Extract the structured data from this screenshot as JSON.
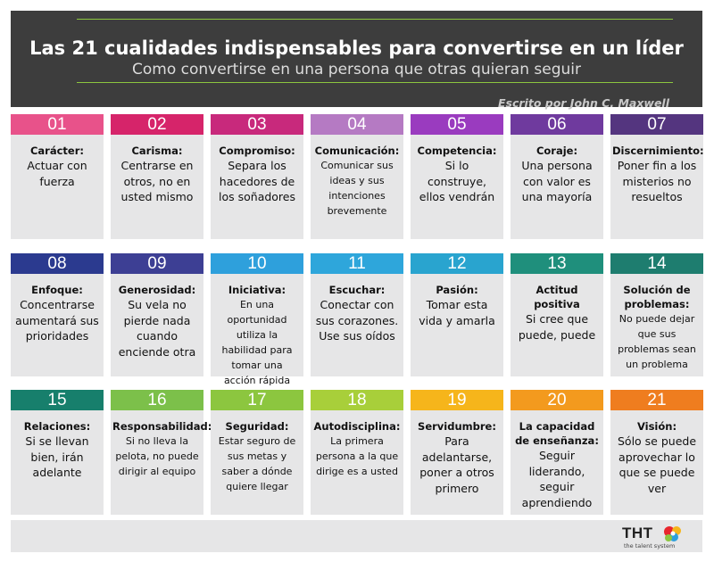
{
  "header": {
    "title": "Las 21 cualidades indispensables para convertirse en un líder",
    "subtitle": "Como convertirse en una persona que otras quieran seguir",
    "author": "Escrito por John C. Maxwell"
  },
  "cards": [
    {
      "num": "01",
      "title": "Carácter:",
      "desc": "Actuar con fuerza",
      "color": "#e8528a"
    },
    {
      "num": "02",
      "title": "Carisma:",
      "desc": "Centrarse en otros, no en usted mismo",
      "color": "#d6246a"
    },
    {
      "num": "03",
      "title": "Compromiso:",
      "desc": "Separa los hacedores de los soñadores",
      "color": "#c8297c"
    },
    {
      "num": "04",
      "title": "Comunicación:",
      "desc": "Comunicar sus ideas y sus intenciones brevemente",
      "color": "#b57ac3"
    },
    {
      "num": "05",
      "title": "Competencia:",
      "desc": "Si lo construye, ellos vendrán",
      "color": "#9a3bbf"
    },
    {
      "num": "06",
      "title": "Coraje:",
      "desc": "Una persona con valor es una mayoría",
      "color": "#6f3a9e"
    },
    {
      "num": "07",
      "title": "Discernimiento:",
      "desc": "Poner fin a los misterios no resueltos",
      "color": "#54357f"
    },
    {
      "num": "08",
      "title": "Enfoque:",
      "desc": "Concentrarse aumentará sus prioridades",
      "color": "#2b3a8f"
    },
    {
      "num": "09",
      "title": "Generosidad:",
      "desc": "Su vela no pierde nada cuando enciende otra",
      "color": "#3d3f94"
    },
    {
      "num": "10",
      "title": "Iniciativa:",
      "desc": "En una oportunidad utiliza la habilidad para tomar una acción rápida",
      "color": "#2ea0dc"
    },
    {
      "num": "11",
      "title": "Escuchar:",
      "desc": "Conectar con sus corazones. Use sus oídos",
      "color": "#2ea6db"
    },
    {
      "num": "12",
      "title": "Pasión:",
      "desc": "Tomar esta vida y amarla",
      "color": "#29a4cf"
    },
    {
      "num": "13",
      "title": "Actitud positiva",
      "desc": "Si cree que puede, puede",
      "color": "#1f8f7c"
    },
    {
      "num": "14",
      "title": "Solución de problemas:",
      "desc": "No puede dejar que sus problemas sean un problema",
      "color": "#1e7d6f"
    },
    {
      "num": "15",
      "title": "Relaciones:",
      "desc": "Si se llevan bien, irán adelante",
      "color": "#177f6c"
    },
    {
      "num": "16",
      "title": "Responsabilidad:",
      "desc": "Si no lleva la pelota, no puede dirigir al equipo",
      "color": "#7cc04a"
    },
    {
      "num": "17",
      "title": "Seguridad:",
      "desc": "Estar seguro de sus metas y saber a dónde quiere llegar",
      "color": "#8cc63f"
    },
    {
      "num": "18",
      "title": "Autodisciplina:",
      "desc": "La primera persona a la que dirige es a usted",
      "color": "#a8cf3a"
    },
    {
      "num": "19",
      "title": "Servidumbre:",
      "desc": "Para adelantarse, poner a otros primero",
      "color": "#f6b51b"
    },
    {
      "num": "20",
      "title": "La capacidad de enseñanza:",
      "desc": "Seguir liderando, seguir aprendiendo",
      "color": "#f39a1e"
    },
    {
      "num": "21",
      "title": "Visión:",
      "desc": "Sólo se puede aprovechar lo que se puede ver",
      "color": "#ef7d1f"
    }
  ],
  "footer": {
    "logo_text": "THT",
    "logo_sub": "the talent system"
  }
}
